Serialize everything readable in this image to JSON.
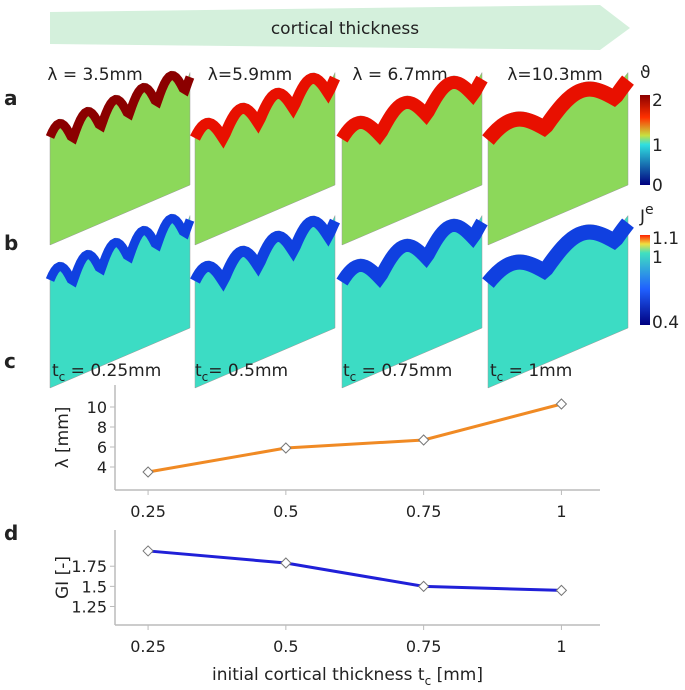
{
  "header": "cortical thickness",
  "panel_labels": [
    "a",
    "b",
    "c",
    "d"
  ],
  "wavelengths": [
    "λ = 3.5mm",
    "λ=5.9mm",
    "λ = 6.7mm",
    "λ=10.3mm"
  ],
  "thicknesses": [
    {
      "symbol": "t",
      "subscript": "c",
      "text": " = 0.25mm"
    },
    {
      "symbol": "t",
      "subscript": "c",
      "text": "= 0.5mm"
    },
    {
      "symbol": "t",
      "subscript": "c",
      "text": " = 0.75mm"
    },
    {
      "symbol": "t",
      "subscript": "c",
      "text": " = 1mm"
    }
  ],
  "colorbars": [
    {
      "symbol": "ϑ",
      "ticks": [
        "2",
        "1",
        "0"
      ]
    },
    {
      "symbol": "J",
      "superscript": "e",
      "ticks": [
        "1.1",
        "1",
        "0.4"
      ]
    }
  ],
  "chart_data": [
    {
      "type": "line",
      "ylabel": "λ [mm]",
      "color": "#f08a24",
      "x": [
        0.25,
        0.5,
        0.75,
        1
      ],
      "values": [
        3.5,
        5.9,
        6.7,
        10.3
      ],
      "xlim": [
        0.19,
        1.07
      ],
      "xticks": [
        0.25,
        0.5,
        0.75,
        1
      ],
      "ylim": [
        1.7,
        12.2
      ],
      "yticks": [
        4,
        6,
        8,
        10
      ]
    },
    {
      "type": "line",
      "ylabel": "GI [-]",
      "color": "#2020d8",
      "x": [
        0.25,
        0.5,
        0.75,
        1
      ],
      "values": [
        1.94,
        1.79,
        1.5,
        1.45
      ],
      "xlim": [
        0.19,
        1.07
      ],
      "xticks": [
        0.25,
        0.5,
        0.75,
        1
      ],
      "ylim": [
        1.02,
        2.2
      ],
      "yticks": [
        1.25,
        1.5,
        1.75
      ],
      "xlabel": {
        "text": "initial cortical thickness t",
        "subscript": "c",
        "unit": " [mm]"
      }
    }
  ]
}
